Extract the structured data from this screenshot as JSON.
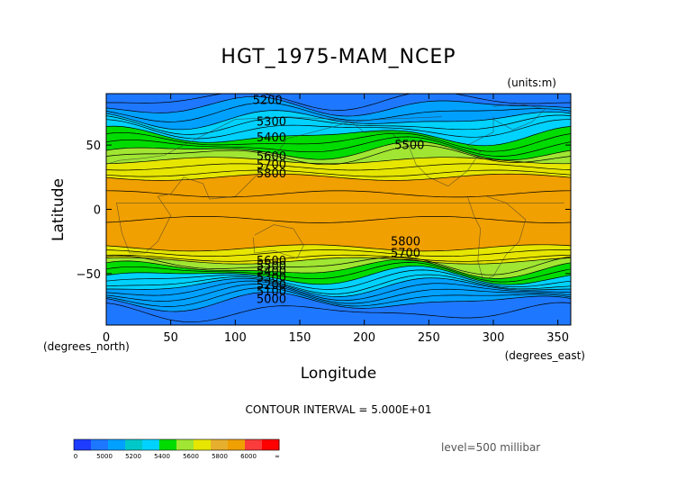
{
  "chart_data": {
    "type": "contour",
    "title": "HGT_1975-MAM_NCEP",
    "units": "(units:m)",
    "xlabel": "Longitude",
    "ylabel": "Latitude",
    "x_units": "(degrees_east)",
    "y_units": "(degrees_north)",
    "xlim": [
      0,
      360
    ],
    "ylim": [
      -90,
      90
    ],
    "x_ticks": [
      0,
      50,
      100,
      150,
      200,
      250,
      300,
      350
    ],
    "y_ticks": [
      50,
      0,
      -50
    ],
    "contour_interval": "CONTOUR INTERVAL = 5.000E+01",
    "level": "level=500 millibar",
    "contour_labels": [
      {
        "value": "5200",
        "lon": 125,
        "lat": 82
      },
      {
        "value": "5300",
        "lon": 128,
        "lat": 65
      },
      {
        "value": "5400",
        "lon": 128,
        "lat": 53
      },
      {
        "value": "5500",
        "lon": 235,
        "lat": 47
      },
      {
        "value": "5600",
        "lon": 128,
        "lat": 38
      },
      {
        "value": "5700",
        "lon": 128,
        "lat": 32
      },
      {
        "value": "5800",
        "lon": 128,
        "lat": 25
      },
      {
        "value": "5800",
        "lon": 232,
        "lat": -28
      },
      {
        "value": "5700",
        "lon": 232,
        "lat": -37
      },
      {
        "value": "5600",
        "lon": 128,
        "lat": -43
      },
      {
        "value": "5500",
        "lon": 128,
        "lat": -47
      },
      {
        "value": "5400",
        "lon": 128,
        "lat": -51
      },
      {
        "value": "5300",
        "lon": 128,
        "lat": -56
      },
      {
        "value": "5200",
        "lon": 128,
        "lat": -62
      },
      {
        "value": "5100",
        "lon": 128,
        "lat": -67
      },
      {
        "value": "5000",
        "lon": 128,
        "lat": -73
      }
    ],
    "bands": [
      {
        "from_lat": 90,
        "to_lat": 80,
        "color": "#1e78ff"
      },
      {
        "from_lat": 80,
        "to_lat": 70,
        "color": "#00a0ff"
      },
      {
        "from_lat": 70,
        "to_lat": 57,
        "color": "#00d2ff"
      },
      {
        "from_lat": 57,
        "to_lat": 45,
        "color": "#00dc00"
      },
      {
        "from_lat": 45,
        "to_lat": 38,
        "color": "#a0e632"
      },
      {
        "from_lat": 38,
        "to_lat": 25,
        "color": "#e6e600"
      },
      {
        "from_lat": 25,
        "to_lat": -30,
        "color": "#f0a000"
      },
      {
        "from_lat": -30,
        "to_lat": -40,
        "color": "#e6e600"
      },
      {
        "from_lat": -40,
        "to_lat": -46,
        "color": "#a0e632"
      },
      {
        "from_lat": -46,
        "to_lat": -52,
        "color": "#00dc00"
      },
      {
        "from_lat": -52,
        "to_lat": -60,
        "color": "#00d2ff"
      },
      {
        "from_lat": -60,
        "to_lat": -72,
        "color": "#00a0ff"
      },
      {
        "from_lat": -72,
        "to_lat": -90,
        "color": "#1e78ff"
      }
    ],
    "colorbar": {
      "labels": [
        "0",
        "5000",
        "5200",
        "5400",
        "5600",
        "5800",
        "6000",
        "∞"
      ],
      "colors": [
        "#1e3cff",
        "#1e78ff",
        "#00a0ff",
        "#00c8c8",
        "#00d2ff",
        "#00dc00",
        "#a0e632",
        "#e6e600",
        "#e6af2d",
        "#f0a000",
        "#fa3c3c",
        "#ff0000"
      ]
    }
  }
}
